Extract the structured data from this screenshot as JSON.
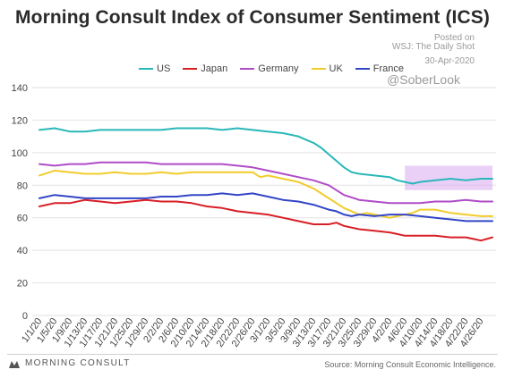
{
  "header": {
    "title": "Morning Consult Index of Consumer Sentiment (ICS)",
    "credit_partial": "Posted on",
    "credit_source": "WSJ: The Daily Shot",
    "credit_date": "30-Apr-2020",
    "handle": "@SoberLook"
  },
  "footer": {
    "logo_text": "MORNING CONSULT",
    "source": "Source: Morning Consult Economic Intelligence."
  },
  "colors": {
    "US": "#2ab7ba",
    "Japan": "#d81f26",
    "Germany": "#b04bc8",
    "UK": "#f2cc2c",
    "France": "#3246c6",
    "highlight": "#d9a9ee",
    "grid": "#e2e2e2"
  },
  "chart_data": {
    "type": "line",
    "title": "Morning Consult Index of Consumer Sentiment (ICS)",
    "xlabel": "",
    "ylabel": "",
    "ylim": [
      0,
      140
    ],
    "yticks": [
      0,
      20,
      40,
      60,
      80,
      100,
      120,
      140
    ],
    "grid": true,
    "legend_position": "top",
    "x_tick_labels": [
      "1/1/20",
      "1/5/20",
      "1/9/20",
      "1/13/20",
      "1/17/20",
      "1/21/20",
      "1/25/20",
      "1/29/20",
      "2/2/20",
      "2/6/20",
      "2/10/20",
      "2/14/20",
      "2/18/20",
      "2/22/20",
      "2/26/20",
      "3/1/20",
      "3/5/20",
      "3/9/20",
      "3/13/20",
      "3/17/20",
      "3/21/20",
      "3/25/20",
      "3/29/20",
      "4/2/20",
      "4/6/20",
      "4/10/20",
      "4/14/20",
      "4/18/20",
      "4/22/20",
      "4/26/20"
    ],
    "x_tick_days": [
      0,
      4,
      8,
      12,
      16,
      20,
      24,
      28,
      32,
      36,
      40,
      44,
      48,
      52,
      56,
      60,
      64,
      68,
      72,
      76,
      80,
      84,
      88,
      92,
      96,
      100,
      104,
      108,
      112,
      116
    ],
    "x_range_days": [
      0,
      119
    ],
    "highlight_box": {
      "x_start_day": 96,
      "x_end_day": 119,
      "y_low": 77,
      "y_high": 92
    },
    "series": [
      {
        "name": "US",
        "points": [
          [
            0,
            114
          ],
          [
            4,
            115
          ],
          [
            8,
            113
          ],
          [
            12,
            113
          ],
          [
            16,
            114
          ],
          [
            20,
            114
          ],
          [
            24,
            114
          ],
          [
            28,
            114
          ],
          [
            32,
            114
          ],
          [
            36,
            115
          ],
          [
            40,
            115
          ],
          [
            44,
            115
          ],
          [
            48,
            114
          ],
          [
            52,
            115
          ],
          [
            56,
            114
          ],
          [
            60,
            113
          ],
          [
            64,
            112
          ],
          [
            66,
            111
          ],
          [
            68,
            110
          ],
          [
            70,
            108
          ],
          [
            72,
            106
          ],
          [
            74,
            103
          ],
          [
            76,
            99
          ],
          [
            78,
            95
          ],
          [
            80,
            91
          ],
          [
            82,
            88
          ],
          [
            84,
            87
          ],
          [
            88,
            86
          ],
          [
            92,
            85
          ],
          [
            94,
            83
          ],
          [
            96,
            82
          ],
          [
            98,
            81
          ],
          [
            100,
            82
          ],
          [
            104,
            83
          ],
          [
            108,
            84
          ],
          [
            112,
            83
          ],
          [
            116,
            84
          ],
          [
            119,
            84
          ]
        ]
      },
      {
        "name": "Japan",
        "points": [
          [
            0,
            67
          ],
          [
            4,
            69
          ],
          [
            8,
            69
          ],
          [
            12,
            71
          ],
          [
            16,
            70
          ],
          [
            20,
            69
          ],
          [
            24,
            70
          ],
          [
            28,
            71
          ],
          [
            32,
            70
          ],
          [
            36,
            70
          ],
          [
            40,
            69
          ],
          [
            44,
            67
          ],
          [
            48,
            66
          ],
          [
            52,
            64
          ],
          [
            56,
            63
          ],
          [
            60,
            62
          ],
          [
            64,
            60
          ],
          [
            68,
            58
          ],
          [
            72,
            56
          ],
          [
            76,
            56
          ],
          [
            78,
            57
          ],
          [
            80,
            55
          ],
          [
            84,
            53
          ],
          [
            88,
            52
          ],
          [
            92,
            51
          ],
          [
            94,
            50
          ],
          [
            96,
            49
          ],
          [
            100,
            49
          ],
          [
            104,
            49
          ],
          [
            108,
            48
          ],
          [
            112,
            48
          ],
          [
            114,
            47
          ],
          [
            116,
            46
          ],
          [
            119,
            48
          ]
        ]
      },
      {
        "name": "Germany",
        "points": [
          [
            0,
            93
          ],
          [
            4,
            92
          ],
          [
            8,
            93
          ],
          [
            12,
            93
          ],
          [
            16,
            94
          ],
          [
            20,
            94
          ],
          [
            24,
            94
          ],
          [
            28,
            94
          ],
          [
            32,
            93
          ],
          [
            36,
            93
          ],
          [
            40,
            93
          ],
          [
            44,
            93
          ],
          [
            48,
            93
          ],
          [
            52,
            92
          ],
          [
            56,
            91
          ],
          [
            60,
            89
          ],
          [
            64,
            87
          ],
          [
            68,
            85
          ],
          [
            72,
            83
          ],
          [
            76,
            80
          ],
          [
            78,
            77
          ],
          [
            80,
            74
          ],
          [
            84,
            71
          ],
          [
            88,
            70
          ],
          [
            92,
            69
          ],
          [
            96,
            69
          ],
          [
            100,
            69
          ],
          [
            104,
            70
          ],
          [
            108,
            70
          ],
          [
            112,
            71
          ],
          [
            116,
            70
          ],
          [
            119,
            70
          ]
        ]
      },
      {
        "name": "UK",
        "points": [
          [
            0,
            86
          ],
          [
            4,
            89
          ],
          [
            8,
            88
          ],
          [
            12,
            87
          ],
          [
            16,
            87
          ],
          [
            20,
            88
          ],
          [
            24,
            87
          ],
          [
            28,
            87
          ],
          [
            32,
            88
          ],
          [
            36,
            87
          ],
          [
            40,
            88
          ],
          [
            44,
            88
          ],
          [
            48,
            88
          ],
          [
            52,
            88
          ],
          [
            56,
            88
          ],
          [
            58,
            85
          ],
          [
            60,
            86
          ],
          [
            64,
            84
          ],
          [
            68,
            82
          ],
          [
            72,
            78
          ],
          [
            76,
            72
          ],
          [
            78,
            69
          ],
          [
            80,
            66
          ],
          [
            84,
            62
          ],
          [
            86,
            63
          ],
          [
            88,
            62
          ],
          [
            92,
            60
          ],
          [
            94,
            61
          ],
          [
            96,
            62
          ],
          [
            98,
            63
          ],
          [
            100,
            65
          ],
          [
            104,
            65
          ],
          [
            108,
            63
          ],
          [
            112,
            62
          ],
          [
            116,
            61
          ],
          [
            119,
            61
          ]
        ]
      },
      {
        "name": "France",
        "points": [
          [
            0,
            72
          ],
          [
            4,
            74
          ],
          [
            8,
            73
          ],
          [
            12,
            72
          ],
          [
            16,
            72
          ],
          [
            20,
            72
          ],
          [
            24,
            72
          ],
          [
            28,
            72
          ],
          [
            32,
            73
          ],
          [
            36,
            73
          ],
          [
            40,
            74
          ],
          [
            44,
            74
          ],
          [
            48,
            75
          ],
          [
            52,
            74
          ],
          [
            56,
            75
          ],
          [
            60,
            73
          ],
          [
            64,
            71
          ],
          [
            68,
            70
          ],
          [
            72,
            68
          ],
          [
            76,
            65
          ],
          [
            78,
            64
          ],
          [
            80,
            62
          ],
          [
            82,
            61
          ],
          [
            84,
            62
          ],
          [
            88,
            61
          ],
          [
            92,
            62
          ],
          [
            96,
            62
          ],
          [
            100,
            61
          ],
          [
            104,
            60
          ],
          [
            108,
            59
          ],
          [
            112,
            58
          ],
          [
            116,
            58
          ],
          [
            119,
            58
          ]
        ]
      }
    ]
  }
}
